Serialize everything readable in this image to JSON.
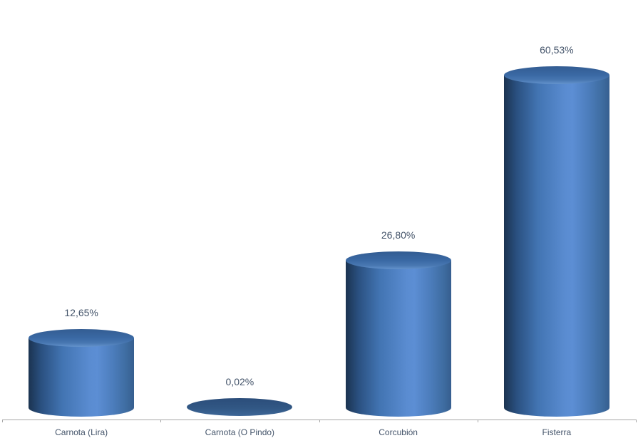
{
  "chart": {
    "background": "#FFFFFF"
  },
  "chart_data": {
    "type": "bar",
    "subtype": "3d-cylinder",
    "title": "",
    "xlabel": "",
    "ylabel": "",
    "categories": [
      "Carnota (Lira)",
      "Carnota (O Pindo)",
      "Corcubión",
      "Fisterra"
    ],
    "values": [
      12.65,
      0.02,
      26.8,
      60.53
    ],
    "data_labels": [
      "12,65%",
      "0,02%",
      "26,80%",
      "60,53%"
    ],
    "value_unit": "%",
    "decimal_separator": ",",
    "ylim": [
      0,
      65
    ],
    "grid": false,
    "legend": false,
    "colors": {
      "label_text": "#44546A",
      "axis_line": "#A6A6A6",
      "series_base": "#4F81BD",
      "body_gradient": [
        "#1B3350",
        "#2A5080",
        "#4274B2",
        "#5A8CD1",
        "#5C8ED4",
        "#4C7DBC",
        "#3E6CA0",
        "#365E8F"
      ],
      "top_gradient": [
        "#335C92",
        "#3A69A4",
        "#4877B1",
        "#6493CC"
      ],
      "flat_ellipse_gradient": [
        "#2B4D7A",
        "#315784",
        "#3D6697"
      ]
    }
  }
}
